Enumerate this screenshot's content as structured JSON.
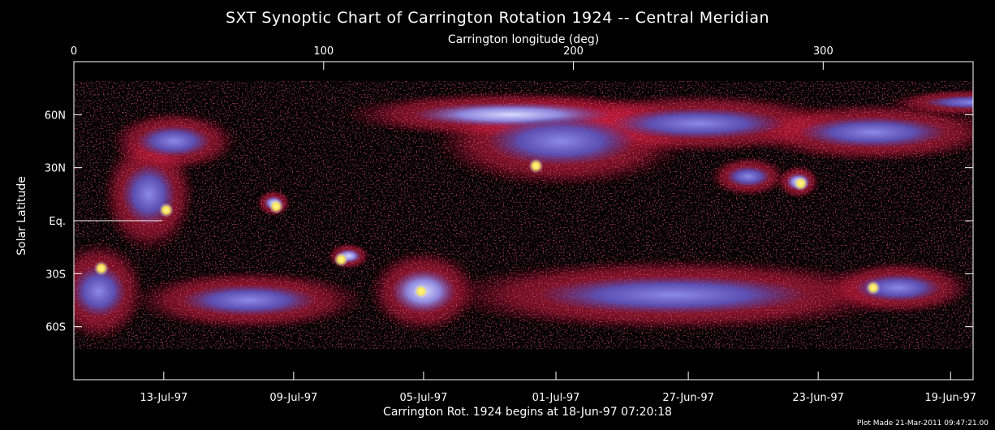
{
  "chart_data": {
    "type": "heatmap",
    "title": "SXT Synoptic Chart of Carrington Rotation 1924 -- Central Meridian",
    "top_xlabel": "Carrington longitude (deg)",
    "ylabel": "Solar Latitude",
    "bottom_xlabel": "Carrington Rot. 1924 begins at 18-Jun-97 07:20:18",
    "footer": "Plot Made 21-Mar-2011 09:47:21.00",
    "xlim": [
      0,
      360
    ],
    "ylim": [
      -90,
      90
    ],
    "top_ticks": [
      {
        "value": 0,
        "label": "0"
      },
      {
        "value": 100,
        "label": "100"
      },
      {
        "value": 200,
        "label": "200"
      },
      {
        "value": 300,
        "label": "300"
      }
    ],
    "left_ticks": [
      {
        "value": 60,
        "label": "60N"
      },
      {
        "value": 30,
        "label": "30N"
      },
      {
        "value": 0,
        "label": "Eq."
      },
      {
        "value": -30,
        "label": "30S"
      },
      {
        "value": -60,
        "label": "60S"
      }
    ],
    "bottom_ticks": [
      {
        "value": 36,
        "label": "13-Jul-97"
      },
      {
        "value": 88,
        "label": "09-Jul-97"
      },
      {
        "value": 140,
        "label": "05-Jul-97"
      },
      {
        "value": 193,
        "label": "01-Jul-97"
      },
      {
        "value": 246,
        "label": "27-Jun-97"
      },
      {
        "value": 298,
        "label": "23-Jun-97"
      },
      {
        "value": 351,
        "label": "19-Jun-97"
      }
    ],
    "colors": {
      "background": "#000000",
      "low": "#d42040",
      "mid": "#6870e0",
      "high": "#b8c0ff",
      "peak": "#ffe850"
    },
    "regions": [
      {
        "lon": 175,
        "lat": 60,
        "w": 80,
        "h": 14,
        "level": "high"
      },
      {
        "lon": 195,
        "lat": 45,
        "w": 60,
        "h": 28,
        "level": "mid"
      },
      {
        "lon": 250,
        "lat": 55,
        "w": 70,
        "h": 18,
        "level": "mid"
      },
      {
        "lon": 320,
        "lat": 50,
        "w": 60,
        "h": 18,
        "level": "mid"
      },
      {
        "lon": 30,
        "lat": 15,
        "w": 22,
        "h": 35,
        "level": "mid"
      },
      {
        "lon": 40,
        "lat": 45,
        "w": 30,
        "h": 18,
        "level": "mid"
      },
      {
        "lon": 80,
        "lat": 10,
        "w": 8,
        "h": 8,
        "level": "high"
      },
      {
        "lon": 290,
        "lat": 22,
        "w": 10,
        "h": 10,
        "level": "high"
      },
      {
        "lon": 270,
        "lat": 25,
        "w": 18,
        "h": 12,
        "level": "mid"
      },
      {
        "lon": 140,
        "lat": -40,
        "w": 26,
        "h": 25,
        "level": "high"
      },
      {
        "lon": 240,
        "lat": -42,
        "w": 110,
        "h": 22,
        "level": "mid"
      },
      {
        "lon": 330,
        "lat": -38,
        "w": 35,
        "h": 16,
        "level": "mid"
      },
      {
        "lon": 10,
        "lat": -40,
        "w": 22,
        "h": 30,
        "level": "mid"
      },
      {
        "lon": 70,
        "lat": -45,
        "w": 55,
        "h": 18,
        "level": "mid"
      },
      {
        "lon": 110,
        "lat": -20,
        "w": 10,
        "h": 8,
        "level": "high"
      },
      {
        "lon": 360,
        "lat": 67,
        "w": 40,
        "h": 8,
        "level": "mid"
      }
    ],
    "bright_points": [
      {
        "lon": 81,
        "lat": 8
      },
      {
        "lon": 291,
        "lat": 21
      },
      {
        "lon": 139,
        "lat": -40
      },
      {
        "lon": 320,
        "lat": -38
      },
      {
        "lon": 11,
        "lat": -27
      },
      {
        "lon": 107,
        "lat": -22
      },
      {
        "lon": 185,
        "lat": 31
      },
      {
        "lon": 37,
        "lat": 6
      }
    ]
  }
}
